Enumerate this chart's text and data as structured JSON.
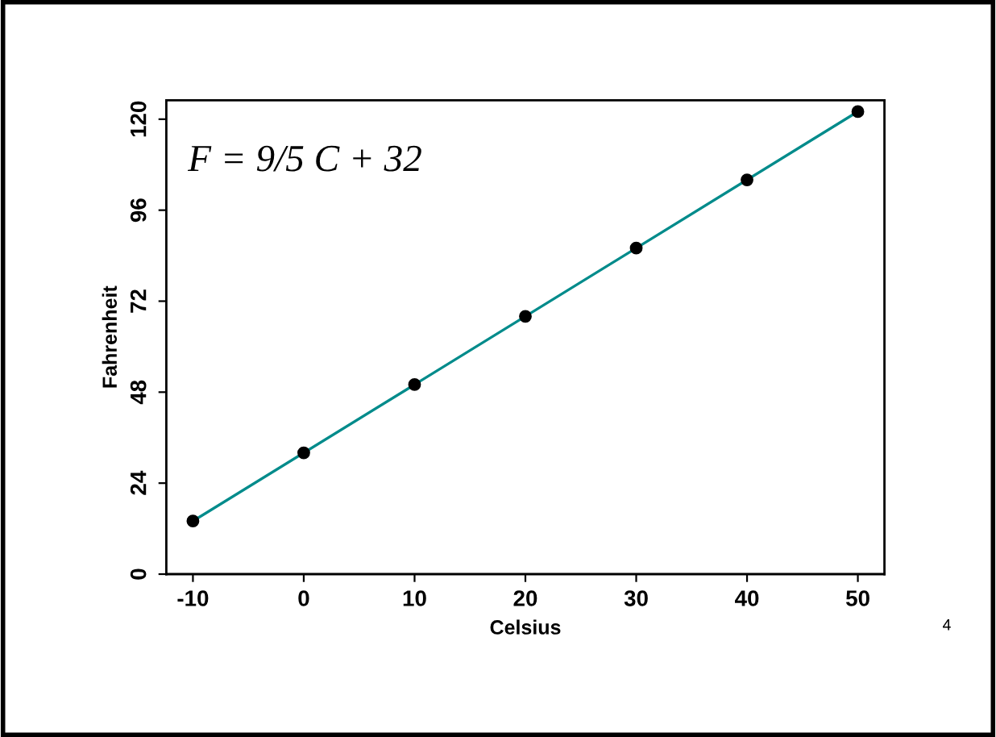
{
  "chart_data": {
    "type": "scatter",
    "xlabel": "Celsius",
    "ylabel": "Fahrenheit",
    "series": [
      {
        "type": "line",
        "color": "#008b8b",
        "x": [
          -10,
          50
        ],
        "values": [
          14,
          122
        ],
        "marker": "none"
      },
      {
        "color": "#000000",
        "x": [
          -10,
          0,
          10,
          20,
          30,
          40,
          50
        ],
        "values": [
          14,
          32,
          50,
          68,
          86,
          104,
          122
        ],
        "marker": "circle"
      }
    ],
    "xlim": [
      -12.4,
      52.4
    ],
    "ylim": [
      0,
      125
    ],
    "xticks": [
      -10,
      0,
      10,
      20,
      30,
      40,
      50
    ],
    "yticks": [
      0,
      24,
      48,
      72,
      96,
      120
    ],
    "grid": false,
    "legend": false,
    "annotations": [
      "F = 9/5 C + 32",
      "4"
    ]
  }
}
